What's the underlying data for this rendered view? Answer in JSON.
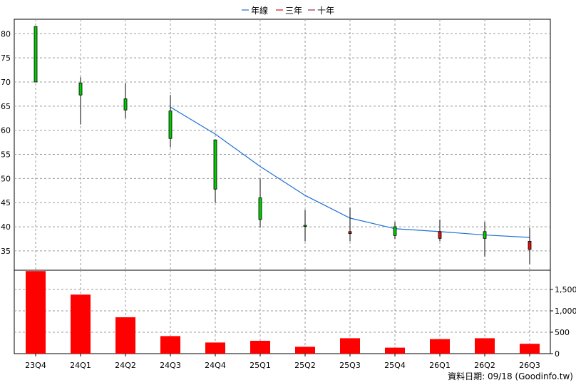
{
  "legend": {
    "items": [
      {
        "label": "年線",
        "color": "#1f6fd6"
      },
      {
        "label": "三年",
        "color": "#e01010"
      },
      {
        "label": "十年",
        "color": "#9a2a5a"
      }
    ]
  },
  "footer": {
    "source": "資料日期: 09/18 (Goodinfo.tw)"
  },
  "colors": {
    "up": "#e01010",
    "down": "#00cc00",
    "volume": "#ff0000",
    "ma": "#1f6fd6",
    "grid": "#999999"
  },
  "chart_data": [
    {
      "type": "candlestick",
      "categories": [
        "23Q4",
        "24Q1",
        "24Q2",
        "24Q3",
        "24Q4",
        "25Q1",
        "25Q2",
        "25Q3",
        "25Q4",
        "26Q1",
        "26Q2",
        "26Q3"
      ],
      "ohlc": [
        {
          "open": 81.5,
          "high": 81.5,
          "low": 70.0,
          "close": 70.0
        },
        {
          "open": 69.8,
          "high": 71.0,
          "low": 61.2,
          "close": 67.3
        },
        {
          "open": 66.5,
          "high": 69.8,
          "low": 62.5,
          "close": 64.2
        },
        {
          "open": 64.0,
          "high": 67.3,
          "low": 56.5,
          "close": 58.3
        },
        {
          "open": 58.0,
          "high": 58.0,
          "low": 45.0,
          "close": 47.8
        },
        {
          "open": 46.0,
          "high": 50.0,
          "low": 39.8,
          "close": 41.5
        },
        {
          "open": 40.3,
          "high": 43.5,
          "low": 37.0,
          "close": 40.2
        },
        {
          "open": 38.6,
          "high": 44.0,
          "low": 37.0,
          "close": 39.0
        },
        {
          "open": 40.0,
          "high": 41.0,
          "low": 37.5,
          "close": 38.2
        },
        {
          "open": 37.6,
          "high": 41.5,
          "low": 37.0,
          "close": 39.0
        },
        {
          "open": 39.0,
          "high": 41.0,
          "low": 33.8,
          "close": 37.6
        },
        {
          "open": 35.3,
          "high": 39.8,
          "low": 32.3,
          "close": 37.0
        }
      ],
      "ma_line": {
        "name": "年線",
        "points": [
          {
            "x": "24Q3",
            "y": 64.8
          },
          {
            "x": "24Q4",
            "y": 59.2
          },
          {
            "x": "25Q1",
            "y": 52.5
          },
          {
            "x": "25Q2",
            "y": 46.5
          },
          {
            "x": "25Q3",
            "y": 41.8
          },
          {
            "x": "25Q4",
            "y": 39.6
          },
          {
            "x": "26Q1",
            "y": 39.0
          },
          {
            "x": "26Q2",
            "y": 38.3
          },
          {
            "x": "26Q3",
            "y": 37.8
          }
        ]
      },
      "yticks": [
        35,
        40,
        45,
        50,
        55,
        60,
        65,
        70,
        75,
        80
      ],
      "ylim": [
        31,
        83
      ]
    },
    {
      "type": "bar",
      "categories": [
        "23Q4",
        "24Q1",
        "24Q2",
        "24Q3",
        "24Q4",
        "25Q1",
        "25Q2",
        "25Q3",
        "25Q4",
        "26Q1",
        "26Q2",
        "26Q3"
      ],
      "values": [
        1930,
        1380,
        850,
        410,
        260,
        300,
        160,
        360,
        140,
        340,
        360,
        230
      ],
      "yticks": [
        0,
        500,
        1000,
        1500
      ],
      "ytick_labels": [
        "0",
        "500",
        "1,000",
        "1,500"
      ],
      "ylim": [
        0,
        1950
      ]
    }
  ]
}
